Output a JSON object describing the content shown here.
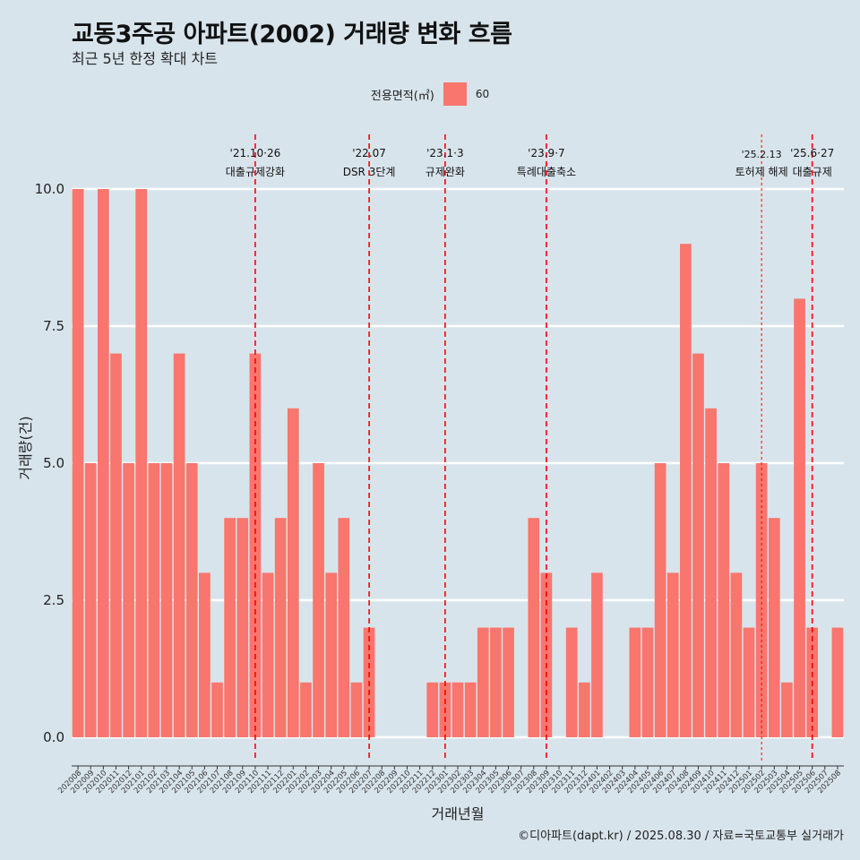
{
  "header": {
    "title": "교동3주공 아파트(2002) 거래량 변화 흐름",
    "subtitle": "최근 5년 한정 확대 차트"
  },
  "legend": {
    "title": "전용면적(㎡)",
    "label": "60",
    "color": "#f8766d"
  },
  "caption": "©디아파트(dapt.kr) / 2025.08.30 / 자료=국토교통부 실거래가",
  "chart_data": {
    "type": "bar",
    "xlabel": "거래년월",
    "ylabel": "거래량(건)",
    "ylim": [
      0,
      10
    ],
    "yticks": [
      "0.0",
      "2.5",
      "5.0",
      "7.5",
      "10.0"
    ],
    "grid": true,
    "legend_position": "top",
    "bar_color": "#f8766d",
    "categories": [
      "202008",
      "202009",
      "202010",
      "202011",
      "202012",
      "202101",
      "202102",
      "202103",
      "202104",
      "202105",
      "202106",
      "202107",
      "202108",
      "202109",
      "202110",
      "202111",
      "202112",
      "202201",
      "202202",
      "202203",
      "202204",
      "202205",
      "202206",
      "202207",
      "202208",
      "202209",
      "202210",
      "202211",
      "202212",
      "202301",
      "202302",
      "202303",
      "202304",
      "202305",
      "202306",
      "202307",
      "202308",
      "202309",
      "202310",
      "202311",
      "202312",
      "202401",
      "202402",
      "202403",
      "202404",
      "202405",
      "202406",
      "202407",
      "202408",
      "202409",
      "202410",
      "202411",
      "202412",
      "202501",
      "202502",
      "202503",
      "202504",
      "202505",
      "202506",
      "202507",
      "202508"
    ],
    "series": [
      {
        "values": [
          10,
          5,
          10,
          7,
          5,
          10,
          5,
          5,
          7,
          5,
          3,
          1,
          4,
          4,
          7,
          3,
          4,
          6,
          1,
          5,
          3,
          4,
          1,
          2,
          0,
          0,
          0,
          0,
          1,
          1,
          1,
          1,
          2,
          2,
          2,
          0,
          4,
          3,
          0,
          2,
          1,
          3,
          0,
          0,
          2,
          2,
          5,
          3,
          9,
          7,
          6,
          5,
          3,
          2,
          5,
          4,
          1,
          8,
          2,
          0,
          2
        ]
      }
    ],
    "annotations": [
      {
        "category": "202110",
        "date": "'21.10·26",
        "label": "대출규제강화",
        "style": "dashed"
      },
      {
        "category": "202207",
        "date": "'22.07",
        "label": "DSR 3단계",
        "style": "dashed"
      },
      {
        "category": "202301",
        "date": "'23.1·3",
        "label": "규제완화",
        "style": "dashed"
      },
      {
        "category": "202309",
        "date": "'23.9·7",
        "label": "특례대출축소",
        "style": "dashed"
      },
      {
        "category": "202502",
        "date": "'25.2.13",
        "label": "토허제 해제",
        "style": "dotted"
      },
      {
        "category": "202506",
        "date": "'25.6·27",
        "label": "대출규제",
        "style": "dashed"
      }
    ]
  }
}
